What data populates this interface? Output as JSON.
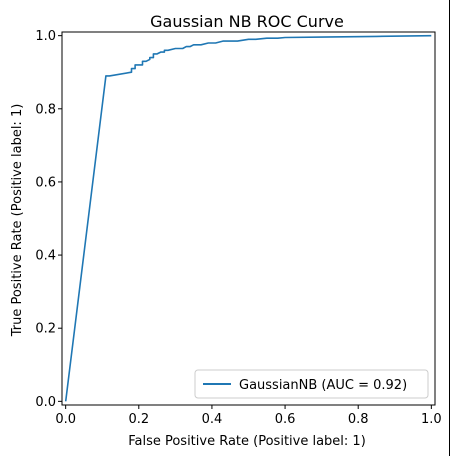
{
  "chart_data": {
    "type": "line",
    "title": "Gaussian NB ROC Curve",
    "xlabel": "False Positive Rate (Positive label: 1)",
    "ylabel": "True Positive Rate (Positive label: 1)",
    "xlim": [
      -0.01,
      1.01
    ],
    "ylim": [
      -0.01,
      1.01
    ],
    "xticks": [
      0.0,
      0.2,
      0.4,
      0.6,
      0.8,
      1.0
    ],
    "xtick_labels": [
      "0.0",
      "0.2",
      "0.4",
      "0.6",
      "0.8",
      "1.0"
    ],
    "yticks": [
      0.0,
      0.2,
      0.4,
      0.6,
      0.8,
      1.0
    ],
    "ytick_labels": [
      "0.0",
      "0.2",
      "0.4",
      "0.6",
      "0.8",
      "1.0"
    ],
    "grid": false,
    "legend_position": "lower-right",
    "color": "#1f77b4",
    "series": [
      {
        "name": "GaussianNB (AUC = 0.92)",
        "x": [
          0.0,
          0.11,
          0.12,
          0.18,
          0.18,
          0.19,
          0.19,
          0.21,
          0.21,
          0.22,
          0.23,
          0.23,
          0.24,
          0.24,
          0.25,
          0.26,
          0.27,
          0.27,
          0.28,
          0.3,
          0.32,
          0.33,
          0.34,
          0.35,
          0.37,
          0.39,
          0.41,
          0.43,
          0.45,
          0.47,
          0.5,
          0.52,
          0.55,
          0.58,
          0.6,
          0.7,
          0.85,
          1.0
        ],
        "y": [
          0.0,
          0.89,
          0.89,
          0.9,
          0.91,
          0.91,
          0.92,
          0.92,
          0.93,
          0.93,
          0.935,
          0.94,
          0.94,
          0.95,
          0.95,
          0.955,
          0.955,
          0.96,
          0.96,
          0.965,
          0.965,
          0.97,
          0.97,
          0.975,
          0.975,
          0.98,
          0.98,
          0.985,
          0.985,
          0.985,
          0.99,
          0.99,
          0.993,
          0.993,
          0.995,
          0.996,
          0.998,
          1.0
        ]
      }
    ]
  }
}
